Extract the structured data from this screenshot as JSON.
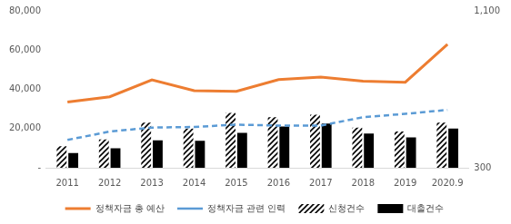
{
  "chart_data": {
    "type": "bar",
    "categories": [
      "2011",
      "2012",
      "2013",
      "2014",
      "2015",
      "2016",
      "2017",
      "2018",
      "2019",
      "2020.9"
    ],
    "series": [
      {
        "name": "신청건수",
        "type": "bar",
        "color": "#000000",
        "marker": "hatch",
        "values": [
          11000,
          14500,
          23000,
          20000,
          28000,
          25800,
          27000,
          20500,
          18500,
          23000
        ]
      },
      {
        "name": "대출건수",
        "type": "bar",
        "color": "#000000",
        "values": [
          7500,
          10000,
          14000,
          13800,
          17800,
          21000,
          22500,
          17500,
          15500,
          20000
        ]
      },
      {
        "name": "정책자금 총 예산",
        "type": "line",
        "color": "#ed7d31",
        "line_style": "solid",
        "values": [
          33500,
          36200,
          44800,
          39300,
          39000,
          45000,
          46200,
          44200,
          43600,
          63000
        ]
      },
      {
        "name": "정책자금 관련 인력",
        "type": "line",
        "color": "#5b9bd5",
        "line_style": "dashed",
        "axis": "y2",
        "values": [
          442,
          485,
          505,
          508,
          520,
          515,
          515,
          558,
          575,
          595
        ]
      }
    ],
    "ylim": [
      0,
      80000
    ],
    "yticks": [
      {
        "value": 0,
        "label": "-"
      },
      {
        "value": 20000,
        "label": "20,000"
      },
      {
        "value": 40000,
        "label": "40,000"
      },
      {
        "value": 60000,
        "label": "60,000"
      },
      {
        "value": 80000,
        "label": "80,000"
      }
    ],
    "y2lim": [
      300,
      1100
    ],
    "y2ticks": [
      300,
      {
        "value": 1100,
        "label": "1,100"
      }
    ],
    "grid": false,
    "legend": "bottom"
  }
}
